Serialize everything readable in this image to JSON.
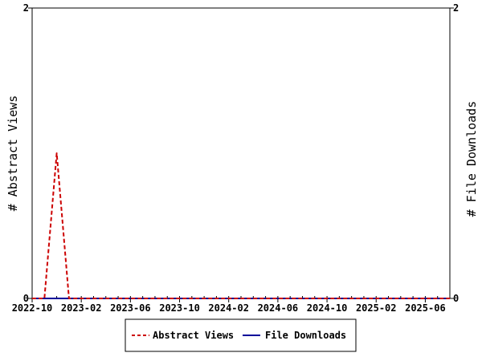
{
  "chart_data": {
    "type": "line",
    "title": "",
    "ylabel": "# Abstract Views",
    "y2label": "# File Downloads",
    "ylim": [
      0,
      2
    ],
    "y2lim": [
      0,
      2
    ],
    "yticks": [
      "0",
      "2"
    ],
    "y2ticks": [
      "0",
      "2"
    ],
    "xlim": [
      "2022-10",
      "2025-08"
    ],
    "xticks": [
      "2022-10",
      "2023-02",
      "2023-06",
      "2023-10",
      "2024-02",
      "2024-06",
      "2024-10",
      "2025-02",
      "2025-06"
    ],
    "x": [
      "2022-10",
      "2022-11",
      "2022-12",
      "2023-01",
      "2023-02",
      "2023-03",
      "2023-04",
      "2023-05",
      "2023-06",
      "2023-07",
      "2023-08",
      "2023-09",
      "2023-10",
      "2023-11",
      "2023-12",
      "2024-01",
      "2024-02",
      "2024-03",
      "2024-04",
      "2024-05",
      "2024-06",
      "2024-07",
      "2024-08",
      "2024-09",
      "2024-10",
      "2024-11",
      "2024-12",
      "2025-01",
      "2025-02",
      "2025-03",
      "2025-04",
      "2025-05",
      "2025-06",
      "2025-07",
      "2025-08"
    ],
    "series": [
      {
        "name": "Abstract Views",
        "color": "#cc0000",
        "style": "dashed",
        "values": [
          0,
          0,
          1,
          0,
          0,
          0,
          0,
          0,
          0,
          0,
          0,
          0,
          0,
          0,
          0,
          0,
          0,
          0,
          0,
          0,
          0,
          0,
          0,
          0,
          0,
          0,
          0,
          0,
          0,
          0,
          0,
          0,
          0,
          0,
          0
        ]
      },
      {
        "name": "File Downloads",
        "color": "#000099",
        "style": "solid",
        "values": [
          0,
          0,
          0,
          0,
          0,
          0,
          0,
          0,
          0,
          0,
          0,
          0,
          0,
          0,
          0,
          0,
          0,
          0,
          0,
          0,
          0,
          0,
          0,
          0,
          0,
          0,
          0,
          0,
          0,
          0,
          0,
          0,
          0,
          0,
          0
        ]
      }
    ],
    "legend": {
      "position": "bottom-center"
    },
    "grid": false
  }
}
